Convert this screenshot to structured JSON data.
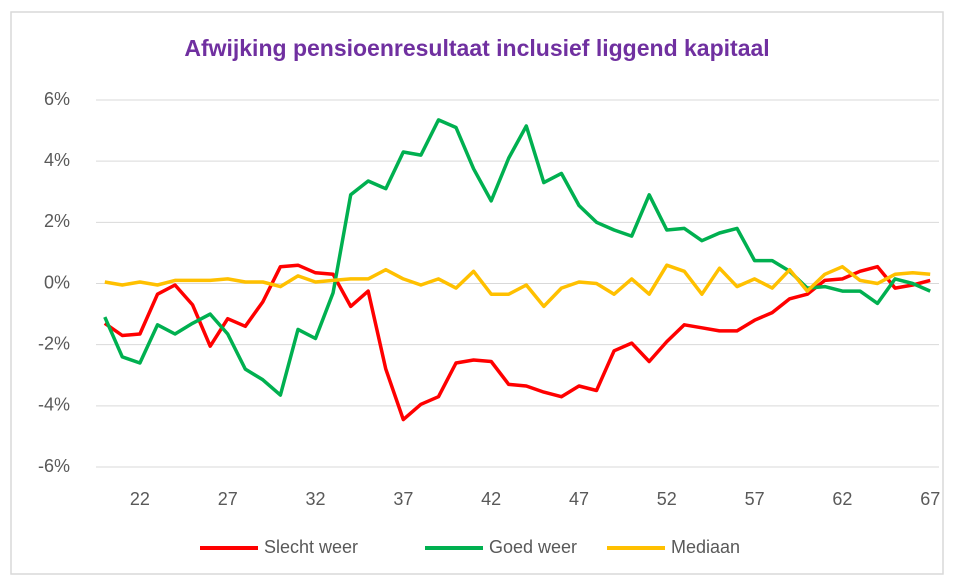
{
  "chart_data": {
    "type": "line",
    "title": "Afwijking  pensioenresultaat inclusief liggend kapitaal",
    "x": [
      20,
      21,
      22,
      23,
      24,
      25,
      26,
      27,
      28,
      29,
      30,
      31,
      32,
      33,
      34,
      35,
      36,
      37,
      38,
      39,
      40,
      41,
      42,
      43,
      44,
      45,
      46,
      47,
      48,
      49,
      50,
      51,
      52,
      53,
      54,
      55,
      56,
      57,
      58,
      59,
      60,
      61,
      62,
      63,
      64,
      65,
      66,
      67
    ],
    "series": [
      {
        "name": "Slecht weer",
        "color": "#ff0000",
        "values": [
          -1.3,
          -1.7,
          -1.65,
          -0.35,
          -0.05,
          -0.7,
          -2.05,
          -1.15,
          -1.4,
          -0.6,
          0.55,
          0.6,
          0.35,
          0.3,
          -0.75,
          -0.25,
          -2.8,
          -4.45,
          -3.95,
          -3.7,
          -2.6,
          -2.5,
          -2.55,
          -3.3,
          -3.35,
          -3.55,
          -3.7,
          -3.35,
          -3.5,
          -2.2,
          -1.95,
          -2.55,
          -1.9,
          -1.35,
          -1.45,
          -1.55,
          -1.55,
          -1.2,
          -0.95,
          -0.5,
          -0.35,
          0.1,
          0.15,
          0.4,
          0.55,
          -0.15,
          -0.05,
          0.1
        ]
      },
      {
        "name": "Goed weer",
        "color": "#00b050",
        "values": [
          -1.1,
          -2.4,
          -2.6,
          -1.35,
          -1.65,
          -1.3,
          -1.0,
          -1.65,
          -2.8,
          -3.15,
          -3.65,
          -1.5,
          -1.8,
          -0.3,
          2.9,
          3.35,
          3.1,
          4.3,
          4.2,
          5.35,
          5.1,
          3.75,
          2.7,
          4.1,
          5.15,
          3.3,
          3.6,
          2.55,
          2.0,
          1.75,
          1.55,
          2.9,
          1.75,
          1.8,
          1.4,
          1.65,
          1.8,
          0.75,
          0.75,
          0.4,
          -0.15,
          -0.1,
          -0.25,
          -0.25,
          -0.65,
          0.15,
          0.0,
          -0.25
        ]
      },
      {
        "name": "Mediaan",
        "color": "#ffc000",
        "values": [
          0.05,
          -0.05,
          0.05,
          -0.05,
          0.1,
          0.1,
          0.1,
          0.15,
          0.05,
          0.05,
          -0.1,
          0.25,
          0.05,
          0.1,
          0.15,
          0.15,
          0.45,
          0.15,
          -0.05,
          0.15,
          -0.15,
          0.4,
          -0.35,
          -0.35,
          -0.05,
          -0.75,
          -0.15,
          0.05,
          0.0,
          -0.35,
          0.15,
          -0.35,
          0.6,
          0.4,
          -0.35,
          0.5,
          -0.1,
          0.15,
          -0.15,
          0.45,
          -0.25,
          0.3,
          0.55,
          0.1,
          0.0,
          0.3,
          0.35,
          0.3
        ]
      }
    ],
    "xlim": [
      19.5,
      67.5
    ],
    "xticks": [
      22,
      27,
      32,
      37,
      42,
      47,
      52,
      57,
      62,
      67
    ],
    "ylim": [
      -6,
      6
    ],
    "yticks": [
      {
        "value": -6,
        "label": "-6%"
      },
      {
        "value": -4,
        "label": "-4%"
      },
      {
        "value": -2,
        "label": "-2%"
      },
      {
        "value": 0,
        "label": "0%"
      },
      {
        "value": 2,
        "label": "2%"
      },
      {
        "value": 4,
        "label": "4%"
      },
      {
        "value": 6,
        "label": "6%"
      }
    ],
    "grid": true,
    "legend": "bottom"
  }
}
